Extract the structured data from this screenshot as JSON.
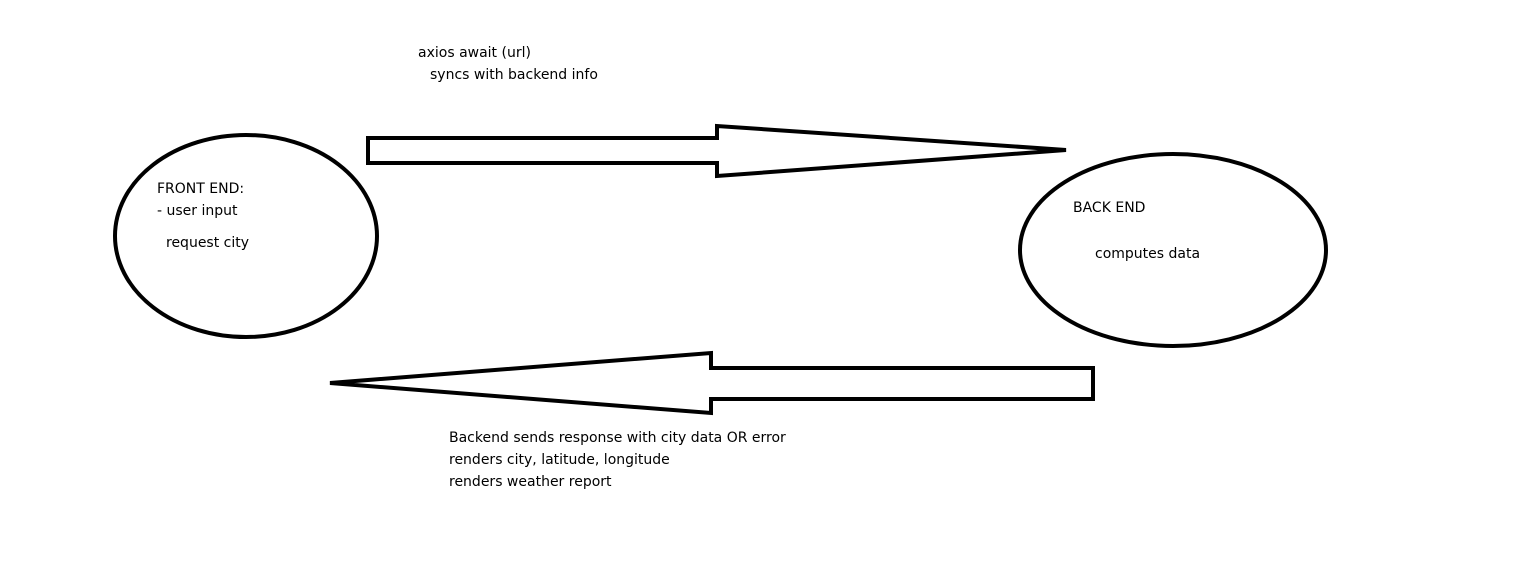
{
  "top_label": {
    "line1": "axios await (url)",
    "line2": "syncs with backend info"
  },
  "front_end": {
    "title": "FRONT END:",
    "item1": "- user input",
    "item2": "request city"
  },
  "back_end": {
    "title": "BACK END",
    "item1": "computes data"
  },
  "bottom_label": {
    "line1": "Backend sends response with city data OR error",
    "line2": "renders city, latitude, longitude",
    "line3": "renders weather report"
  },
  "colors": {
    "stroke": "#000000",
    "background": "#ffffff"
  }
}
